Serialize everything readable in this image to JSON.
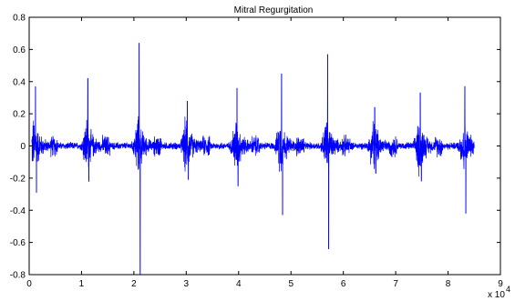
{
  "chart_data": {
    "type": "line",
    "title": "Mitral Regurgitation",
    "xlabel": "",
    "ylabel": "",
    "x_multiplier_label": "x 10",
    "x_multiplier_exponent": "4",
    "xlim": [
      0,
      9
    ],
    "ylim": [
      -0.8,
      0.8
    ],
    "x_ticks": [
      "0",
      "1",
      "2",
      "3",
      "4",
      "5",
      "6",
      "7",
      "8",
      "9"
    ],
    "y_ticks": [
      "0.8",
      "0.6",
      "0.4",
      "0.2",
      "0",
      "-0.2",
      "-0.4",
      "-0.6",
      "-0.8"
    ],
    "grid": false,
    "line_color": "#0000ff",
    "signal_extent": [
      0.05,
      8.5
    ],
    "bursts": [
      {
        "x": 0.1,
        "peak_pos": 0.37,
        "peak_neg": -0.29
      },
      {
        "x": 1.1,
        "peak_pos": 0.42,
        "peak_neg": -0.22
      },
      {
        "x": 2.08,
        "peak_pos": 0.64,
        "peak_neg": -0.8
      },
      {
        "x": 3.0,
        "peak_pos": 0.28,
        "peak_neg": -0.21
      },
      {
        "x": 3.95,
        "peak_pos": 0.36,
        "peak_neg": -0.25
      },
      {
        "x": 4.8,
        "peak_pos": 0.45,
        "peak_neg": -0.43
      },
      {
        "x": 5.68,
        "peak_pos": 0.57,
        "peak_neg": -0.64
      },
      {
        "x": 6.58,
        "peak_pos": 0.24,
        "peak_neg": -0.17
      },
      {
        "x": 7.45,
        "peak_pos": 0.33,
        "peak_neg": -0.22
      },
      {
        "x": 8.3,
        "peak_pos": 0.37,
        "peak_neg": -0.42
      }
    ]
  }
}
